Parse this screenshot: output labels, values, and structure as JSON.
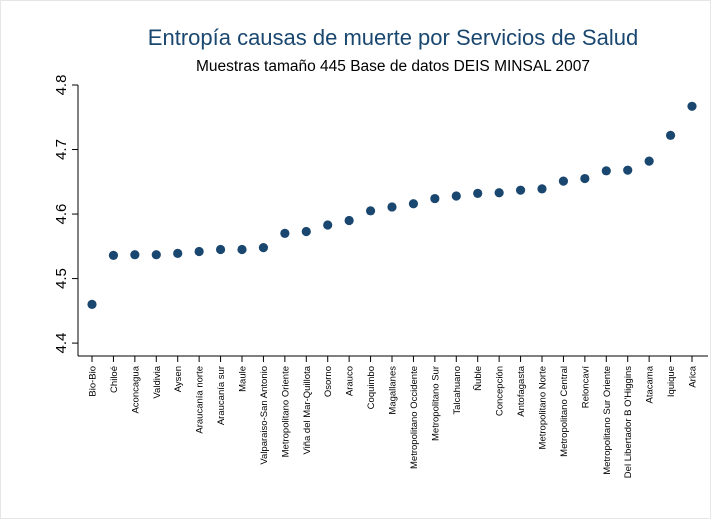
{
  "chart_data": {
    "type": "scatter",
    "title": "Entropía causas de muerte por Servicios de Salud",
    "subtitle": "Muestras tamaño 445 Base de datos DEIS MINSAL 2007",
    "xlabel": "",
    "ylabel": "",
    "ylim": [
      4.38,
      4.8
    ],
    "yticks": [
      4.4,
      4.5,
      4.6,
      4.7,
      4.8
    ],
    "ytick_labels": [
      "4.4",
      "4.5",
      "4.6",
      "4.7",
      "4.8"
    ],
    "grid": false,
    "legend": "none",
    "colors": {
      "marker": "#1a476f",
      "title": "#1a476f",
      "text": "#000000",
      "axis": "#000000"
    },
    "categories": [
      "Bio-Bio",
      "Chiloé",
      "Aconcagua",
      "Valdivia",
      "Aysen",
      "Araucanía norte",
      "Araucanía sur",
      "Maule",
      "Valparaiso-San Antonio",
      "Metropolitano Oriente",
      "Viña del Mar-Quillota",
      "Osorno",
      "Arauco",
      "Coquimbo",
      "Magallanes",
      "Metropolitano Occidente",
      "Metropolitano Sur",
      "Talcahuano",
      "Ñuble",
      "Concepción",
      "Antofagasta",
      "Metropolitano Norte",
      "Metropolitano Central",
      "Reloncaví",
      "Metropolitano Sur Oriente",
      "Del Libertador B O'Higgins",
      "Atacama",
      "Iquique",
      "Arica"
    ],
    "values": [
      4.46,
      4.536,
      4.537,
      4.537,
      4.539,
      4.542,
      4.545,
      4.545,
      4.548,
      4.57,
      4.573,
      4.583,
      4.59,
      4.605,
      4.611,
      4.616,
      4.624,
      4.628,
      4.632,
      4.633,
      4.637,
      4.639,
      4.651,
      4.655,
      4.667,
      4.668,
      4.682,
      4.722,
      4.767
    ]
  }
}
